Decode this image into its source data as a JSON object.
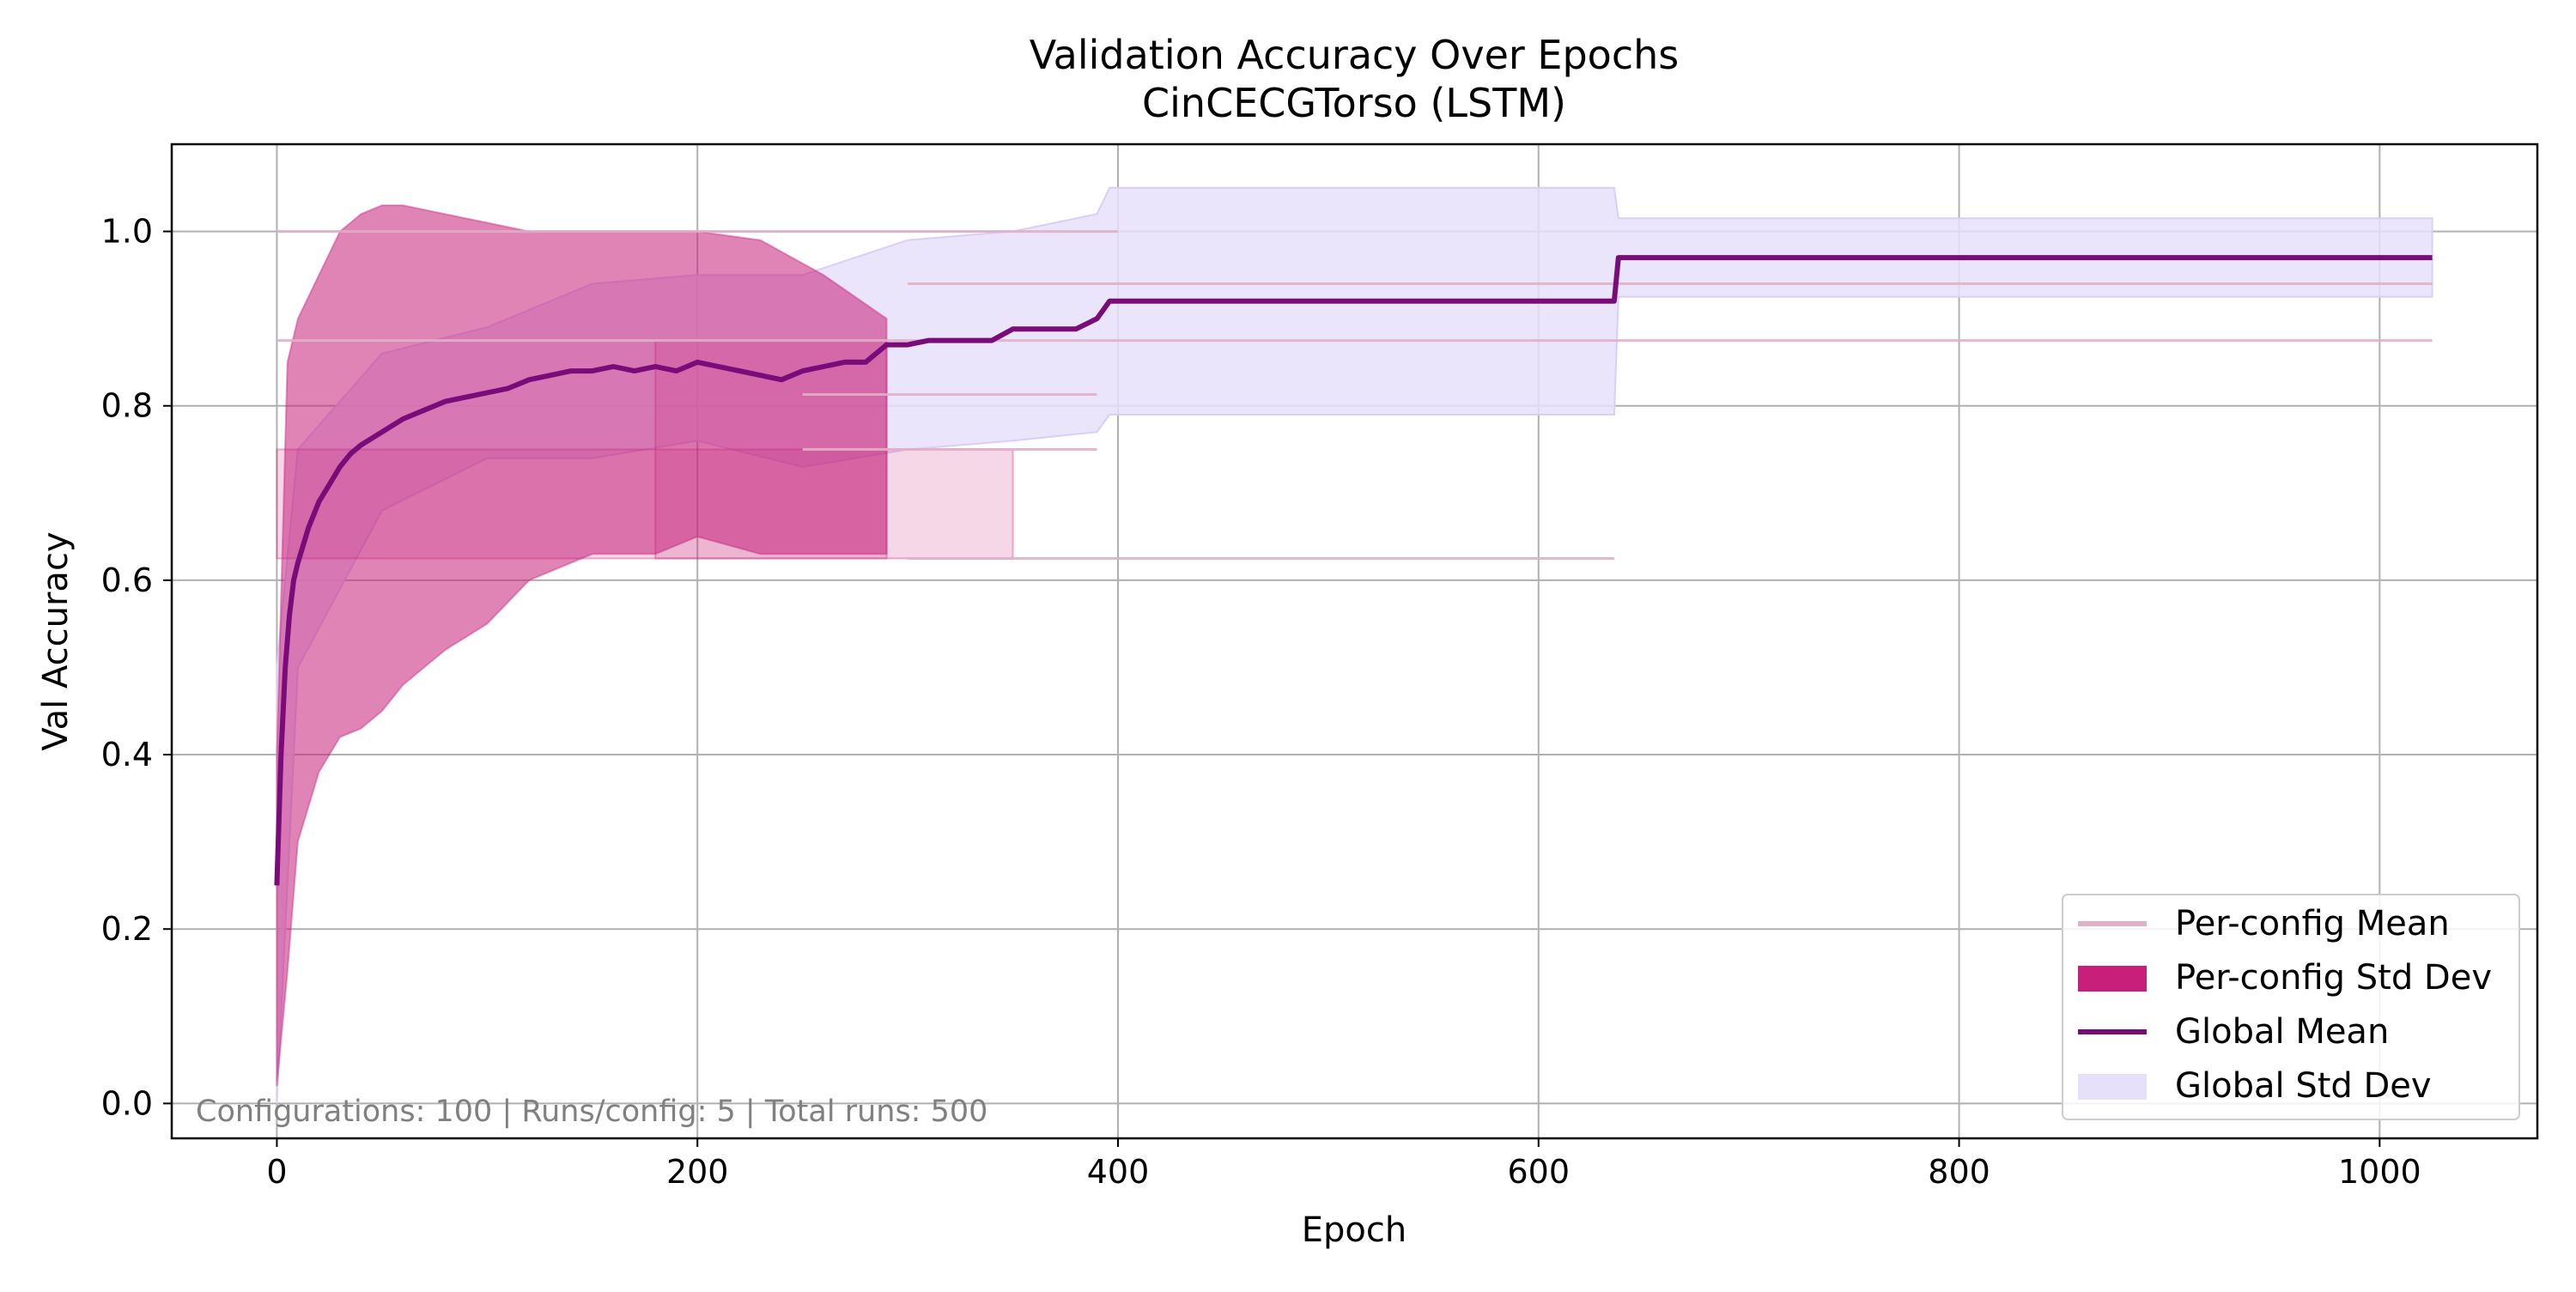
{
  "chart_data": {
    "type": "line",
    "title": "Validation Accuracy Over Epochs",
    "subtitle": "CinCECGTorso (LSTM)",
    "xlabel": "Epoch",
    "ylabel": "Val Accuracy",
    "xlim": [
      -50,
      1075
    ],
    "ylim": [
      -0.04,
      1.1
    ],
    "xticks": [
      0,
      200,
      400,
      600,
      800,
      1000
    ],
    "yticks": [
      0.0,
      0.2,
      0.4,
      0.6,
      0.8,
      1.0
    ],
    "xtick_labels": [
      "0",
      "200",
      "400",
      "600",
      "800",
      "1000"
    ],
    "ytick_labels": [
      "0.0",
      "0.2",
      "0.4",
      "0.6",
      "0.8",
      "1.0"
    ],
    "grid": true,
    "legend_position": "lower-right",
    "legend": [
      {
        "label": "Per-config Mean",
        "kind": "line",
        "color": "#e0b0c8"
      },
      {
        "label": "Per-config Std Dev",
        "kind": "patch",
        "color": "#c71f7a"
      },
      {
        "label": "Global Mean",
        "kind": "line",
        "color": "#7a0c7a"
      },
      {
        "label": "Global Std Dev",
        "kind": "patch",
        "color": "#e6e0fa"
      }
    ],
    "annotation": "Configurations: 100 | Runs/config: 5 | Total runs: 500",
    "colors": {
      "per_config_mean": "#e0b0c8",
      "per_config_std": "#c71f7a",
      "global_mean": "#7a0c7a",
      "global_std_fill": "#e6e0fa",
      "global_std_edge": "#d8cef8"
    },
    "series": [
      {
        "name": "Global Mean",
        "x": [
          0,
          2,
          4,
          6,
          8,
          10,
          15,
          20,
          25,
          30,
          35,
          40,
          50,
          60,
          70,
          80,
          90,
          100,
          110,
          120,
          130,
          140,
          150,
          160,
          170,
          180,
          190,
          200,
          210,
          220,
          230,
          240,
          250,
          260,
          270,
          280,
          290,
          300,
          310,
          320,
          340,
          350,
          360,
          380,
          390,
          393,
          396,
          400,
          450,
          500,
          550,
          600,
          636,
          638,
          700,
          800,
          900,
          1000,
          1025
        ],
        "y": [
          0.25,
          0.4,
          0.5,
          0.56,
          0.6,
          0.62,
          0.66,
          0.69,
          0.71,
          0.73,
          0.745,
          0.755,
          0.77,
          0.785,
          0.795,
          0.805,
          0.81,
          0.815,
          0.82,
          0.83,
          0.835,
          0.84,
          0.84,
          0.845,
          0.84,
          0.845,
          0.84,
          0.85,
          0.845,
          0.84,
          0.835,
          0.83,
          0.84,
          0.845,
          0.85,
          0.85,
          0.87,
          0.87,
          0.875,
          0.875,
          0.875,
          0.888,
          0.888,
          0.888,
          0.9,
          0.91,
          0.92,
          0.92,
          0.92,
          0.92,
          0.92,
          0.92,
          0.92,
          0.97,
          0.97,
          0.97,
          0.97,
          0.97,
          0.97
        ]
      },
      {
        "name": "Global Std Dev",
        "x": [
          0,
          10,
          50,
          100,
          150,
          200,
          250,
          300,
          350,
          390,
          396,
          400,
          500,
          600,
          636,
          638,
          700,
          800,
          900,
          1000,
          1025
        ],
        "y_low": [
          0.0,
          0.5,
          0.68,
          0.74,
          0.74,
          0.76,
          0.73,
          0.75,
          0.76,
          0.77,
          0.79,
          0.79,
          0.79,
          0.79,
          0.79,
          0.925,
          0.925,
          0.925,
          0.925,
          0.925,
          0.925
        ],
        "y_high": [
          0.5,
          0.75,
          0.86,
          0.89,
          0.94,
          0.95,
          0.95,
          0.99,
          1.0,
          1.02,
          1.05,
          1.05,
          1.05,
          1.05,
          1.05,
          1.015,
          1.015,
          1.015,
          1.015,
          1.015,
          1.015
        ]
      },
      {
        "name": "Per-config Std Dev",
        "x": [
          0,
          5,
          10,
          20,
          30,
          40,
          50,
          60,
          80,
          100,
          120,
          150,
          180,
          200,
          230,
          260,
          290
        ],
        "y_low": [
          0.02,
          0.15,
          0.3,
          0.38,
          0.42,
          0.43,
          0.45,
          0.48,
          0.52,
          0.55,
          0.6,
          0.63,
          0.63,
          0.65,
          0.63,
          0.63,
          0.63
        ],
        "y_high": [
          0.4,
          0.85,
          0.9,
          0.95,
          1.0,
          1.02,
          1.03,
          1.03,
          1.02,
          1.01,
          1.0,
          1.0,
          1.0,
          1.0,
          0.99,
          0.95,
          0.9
        ]
      },
      {
        "name": "Per-config Mean",
        "lines": [
          {
            "x": [
              0,
              400
            ],
            "y": [
              1.0,
              1.0
            ]
          },
          {
            "x": [
              0,
              1025
            ],
            "y": [
              0.875,
              0.875
            ]
          },
          {
            "x": [
              300,
              1025
            ],
            "y": [
              0.94,
              0.94
            ]
          },
          {
            "x": [
              300,
              636
            ],
            "y": [
              0.625,
              0.625
            ]
          },
          {
            "x": [
              250,
              390
            ],
            "y": [
              0.813,
              0.813
            ]
          },
          {
            "x": [
              250,
              390
            ],
            "y": [
              0.75,
              0.75
            ]
          }
        ]
      }
    ],
    "per_config_blocks": [
      {
        "x": [
          0,
          350
        ],
        "y_low": 0.625,
        "y_high": 0.75
      },
      {
        "x": [
          180,
          290
        ],
        "y_low": 0.625,
        "y_high": 0.875
      }
    ]
  }
}
